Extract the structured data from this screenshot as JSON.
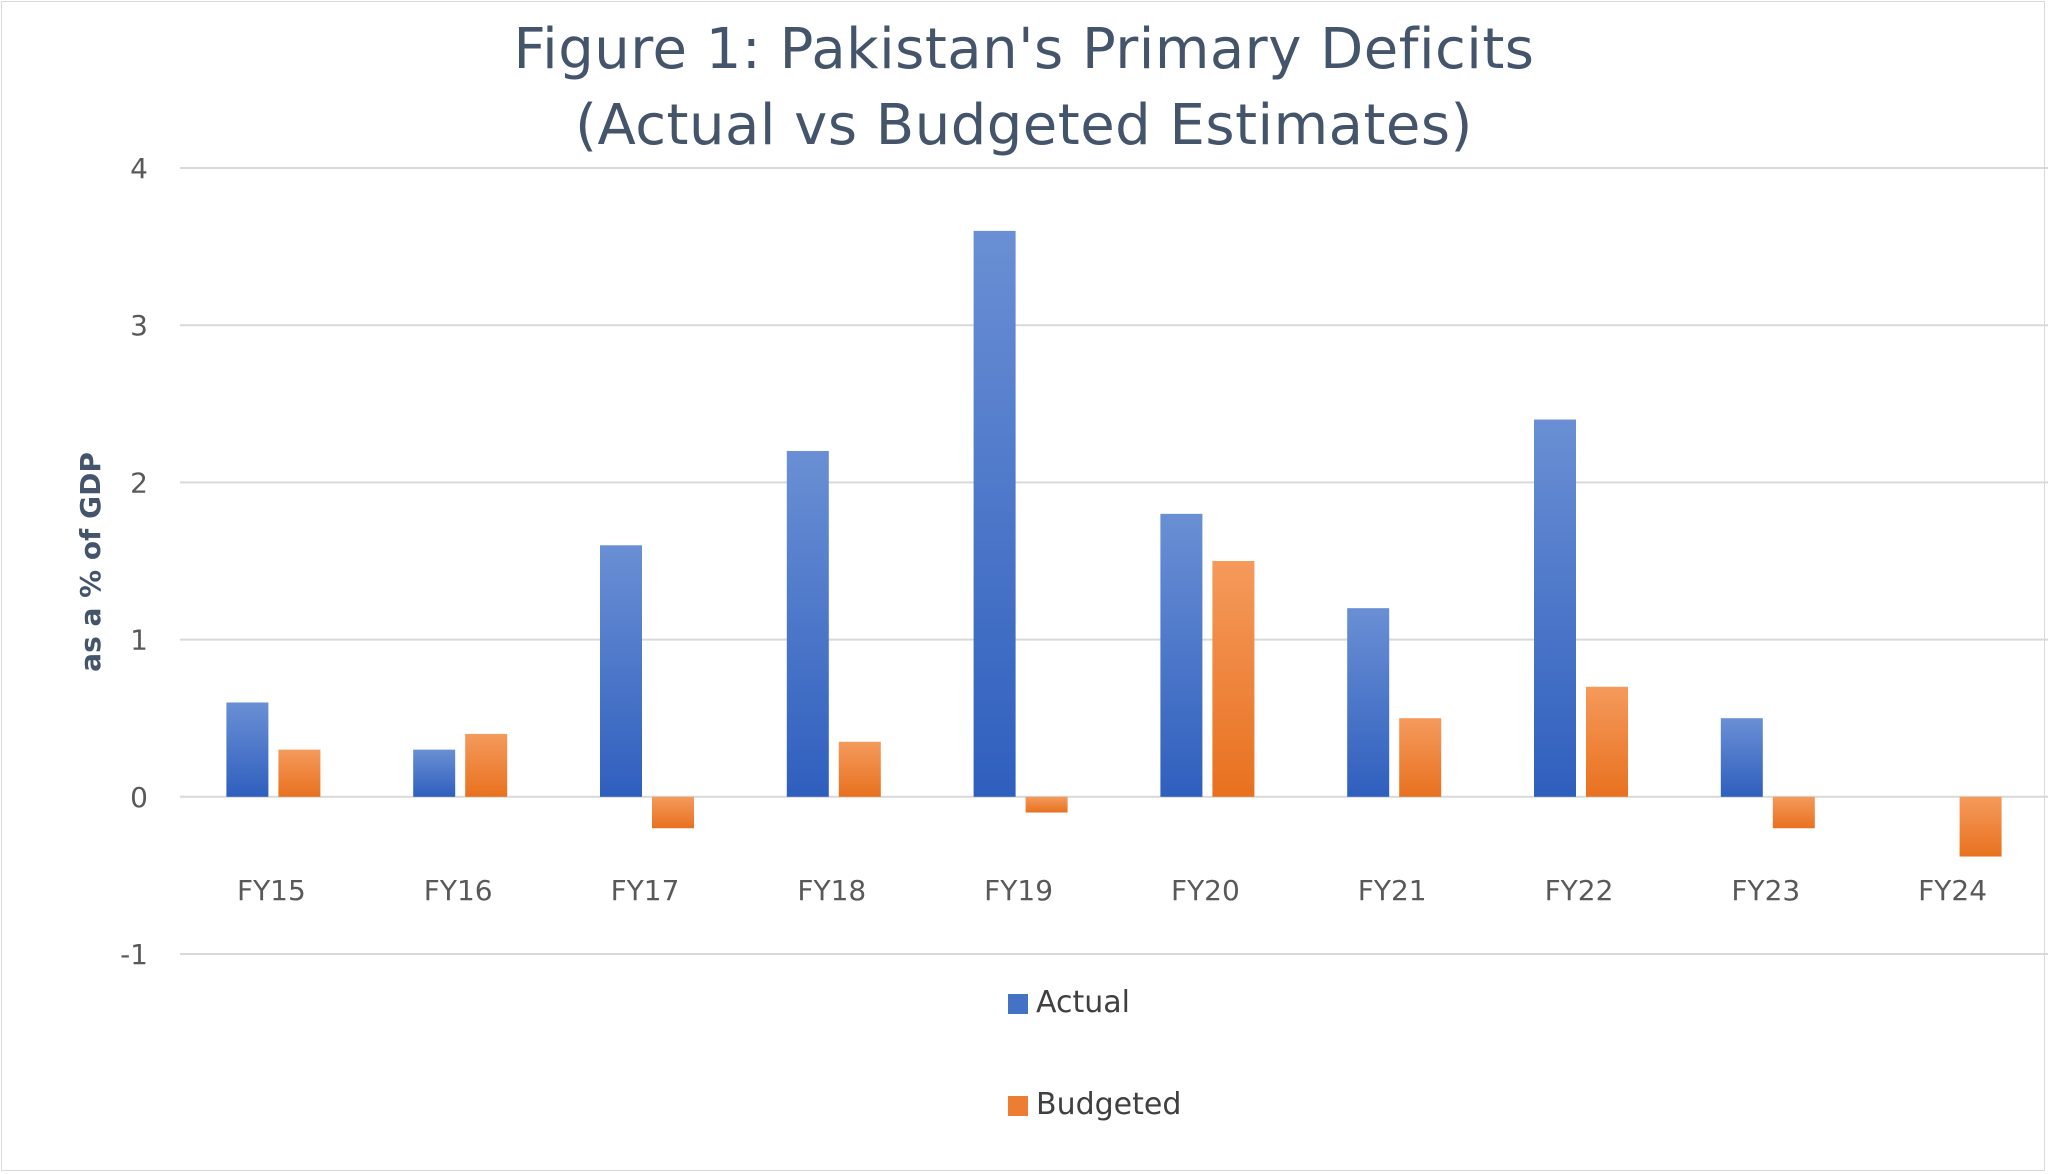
{
  "chart_data": {
    "type": "bar",
    "title_lines": [
      "Figure 1: Pakistan's Primary Deficits",
      "(Actual vs Budgeted Estimates)"
    ],
    "xlabel": "",
    "ylabel": "as a % of GDP",
    "categories": [
      "FY15",
      "FY16",
      "FY17",
      "FY18",
      "FY19",
      "FY20",
      "FY21",
      "FY22",
      "FY23",
      "FY24"
    ],
    "series": [
      {
        "name": "Actual",
        "color": "#4472c4",
        "values": [
          0.6,
          0.3,
          1.6,
          2.2,
          3.6,
          1.8,
          1.2,
          2.4,
          0.5,
          null
        ]
      },
      {
        "name": "Budgeted",
        "color": "#ed7d31",
        "values": [
          0.3,
          0.4,
          -0.2,
          0.35,
          -0.1,
          1.5,
          0.5,
          0.7,
          -0.2,
          -0.38
        ]
      }
    ],
    "yticks": [
      4,
      3,
      2,
      1,
      0,
      -1
    ],
    "ylim": [
      -1,
      4
    ],
    "grid": true,
    "legend_position": "bottom"
  }
}
